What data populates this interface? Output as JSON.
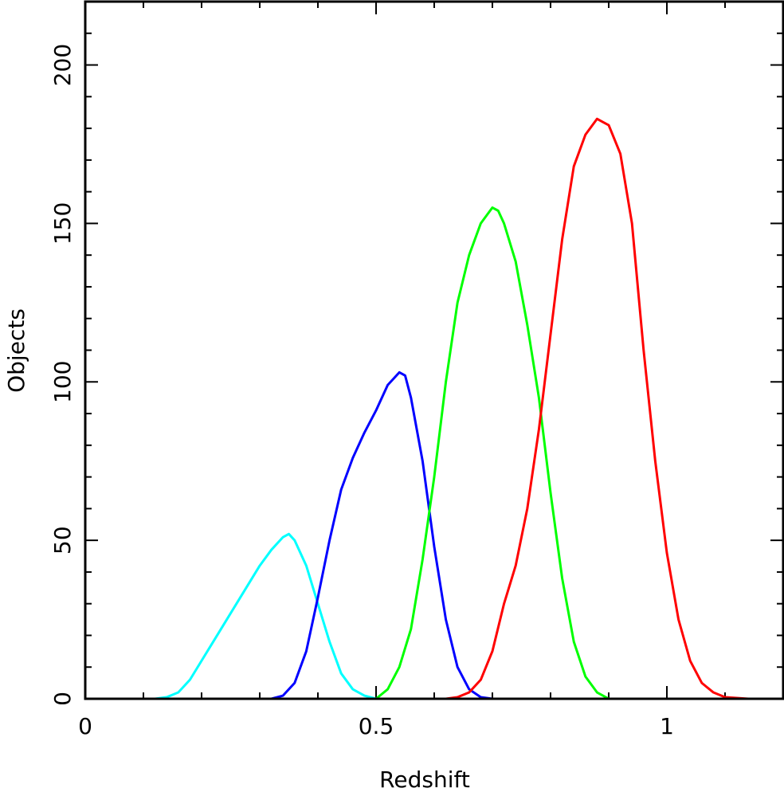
{
  "chart_data": {
    "type": "line",
    "xlabel": "Redshift",
    "ylabel": "Objects",
    "xlim": [
      0,
      1.2
    ],
    "ylim": [
      0,
      220
    ],
    "xticks": [
      0,
      0.5,
      1
    ],
    "xticks_minor": [
      0.1,
      0.2,
      0.3,
      0.4,
      0.6,
      0.7,
      0.8,
      0.9,
      1.1
    ],
    "yticks": [
      0,
      50,
      100,
      150,
      200
    ],
    "yticks_minor": [
      10,
      20,
      30,
      40,
      60,
      70,
      80,
      90,
      110,
      120,
      130,
      140,
      160,
      170,
      180,
      190,
      210
    ],
    "series": [
      {
        "color": "#00ffff",
        "x": [
          0.12,
          0.14,
          0.16,
          0.18,
          0.2,
          0.22,
          0.24,
          0.26,
          0.28,
          0.3,
          0.32,
          0.34,
          0.35,
          0.36,
          0.38,
          0.4,
          0.42,
          0.44,
          0.46,
          0.48,
          0.5
        ],
        "values": [
          0,
          0.5,
          2,
          6,
          12,
          18,
          24,
          30,
          36,
          42,
          47,
          51,
          52,
          50,
          42,
          30,
          18,
          8,
          3,
          1,
          0
        ]
      },
      {
        "color": "#0000ff",
        "x": [
          0.32,
          0.34,
          0.36,
          0.38,
          0.4,
          0.42,
          0.44,
          0.46,
          0.48,
          0.5,
          0.52,
          0.54,
          0.55,
          0.56,
          0.58,
          0.6,
          0.62,
          0.64,
          0.66,
          0.68,
          0.7
        ],
        "values": [
          0,
          1,
          5,
          15,
          32,
          50,
          66,
          76,
          84,
          91,
          99,
          103,
          102,
          95,
          75,
          48,
          25,
          10,
          3,
          0.5,
          0
        ]
      },
      {
        "color": "#00ff00",
        "x": [
          0.5,
          0.52,
          0.54,
          0.56,
          0.58,
          0.6,
          0.62,
          0.64,
          0.66,
          0.68,
          0.7,
          0.71,
          0.72,
          0.74,
          0.76,
          0.78,
          0.8,
          0.82,
          0.84,
          0.86,
          0.88,
          0.9
        ],
        "values": [
          0,
          3,
          10,
          22,
          44,
          70,
          100,
          125,
          140,
          150,
          155,
          154,
          150,
          138,
          118,
          95,
          65,
          38,
          18,
          7,
          2,
          0
        ]
      },
      {
        "color": "#ff0000",
        "x": [
          0.62,
          0.64,
          0.66,
          0.68,
          0.7,
          0.72,
          0.74,
          0.76,
          0.78,
          0.8,
          0.82,
          0.84,
          0.86,
          0.88,
          0.89,
          0.9,
          0.92,
          0.94,
          0.96,
          0.98,
          1.0,
          1.02,
          1.04,
          1.06,
          1.08,
          1.1,
          1.14
        ],
        "values": [
          0,
          0.5,
          2,
          6,
          15,
          30,
          42,
          60,
          85,
          115,
          145,
          168,
          178,
          183,
          182,
          181,
          172,
          150,
          110,
          75,
          46,
          25,
          12,
          5,
          2,
          0.5,
          0
        ]
      }
    ]
  }
}
